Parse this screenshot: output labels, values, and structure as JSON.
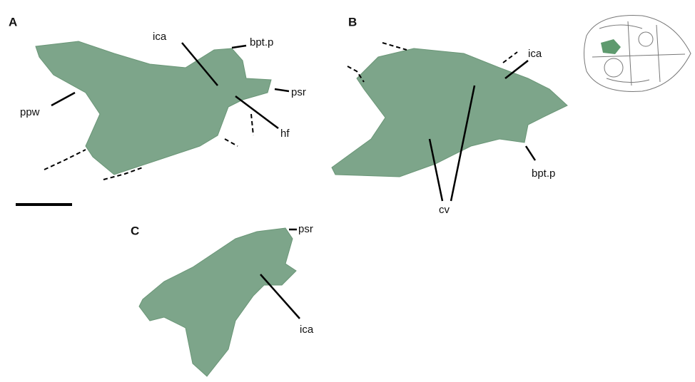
{
  "panels": [
    {
      "letter": "A",
      "labels": [
        "ica",
        "bpt.p",
        "psr",
        "ppw",
        "hf"
      ]
    },
    {
      "letter": "B",
      "labels": [
        "ica",
        "bpt.p",
        "cv"
      ]
    },
    {
      "letter": "C",
      "labels": [
        "psr",
        "ica"
      ]
    }
  ]
}
